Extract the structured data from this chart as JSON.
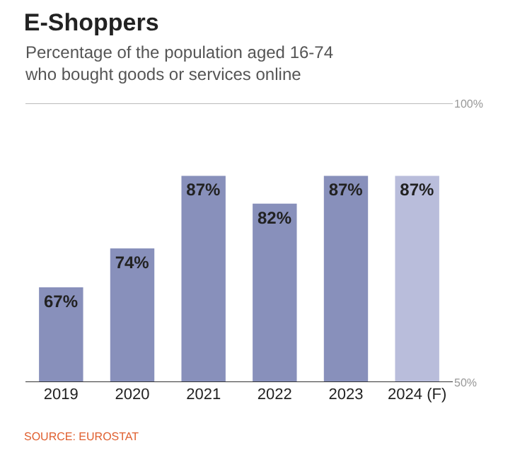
{
  "chart_data": {
    "type": "bar",
    "title": "E-Shoppers",
    "subtitle": "Percentage of the population aged 16-74\nwho bought goods or services online",
    "categories": [
      "2019",
      "2020",
      "2021",
      "2022",
      "2023",
      "2024 (F)"
    ],
    "values": [
      67,
      74,
      87,
      82,
      87,
      87
    ],
    "value_labels": [
      "67%",
      "74%",
      "87%",
      "82%",
      "87%",
      "87%"
    ],
    "colors": [
      "#8890bb",
      "#8890bb",
      "#8890bb",
      "#8890bb",
      "#8890bb",
      "#b9bddb"
    ],
    "ylim": [
      50,
      100
    ],
    "yticks": [
      {
        "value": 50,
        "label": "50%"
      },
      {
        "value": 100,
        "label": "100%"
      }
    ],
    "ref_lines": [
      {
        "axis": "y",
        "value": 100,
        "color": "#bbbbbb"
      }
    ],
    "legend": false,
    "annotations": [
      "SOURCE: EUROSTAT"
    ]
  }
}
